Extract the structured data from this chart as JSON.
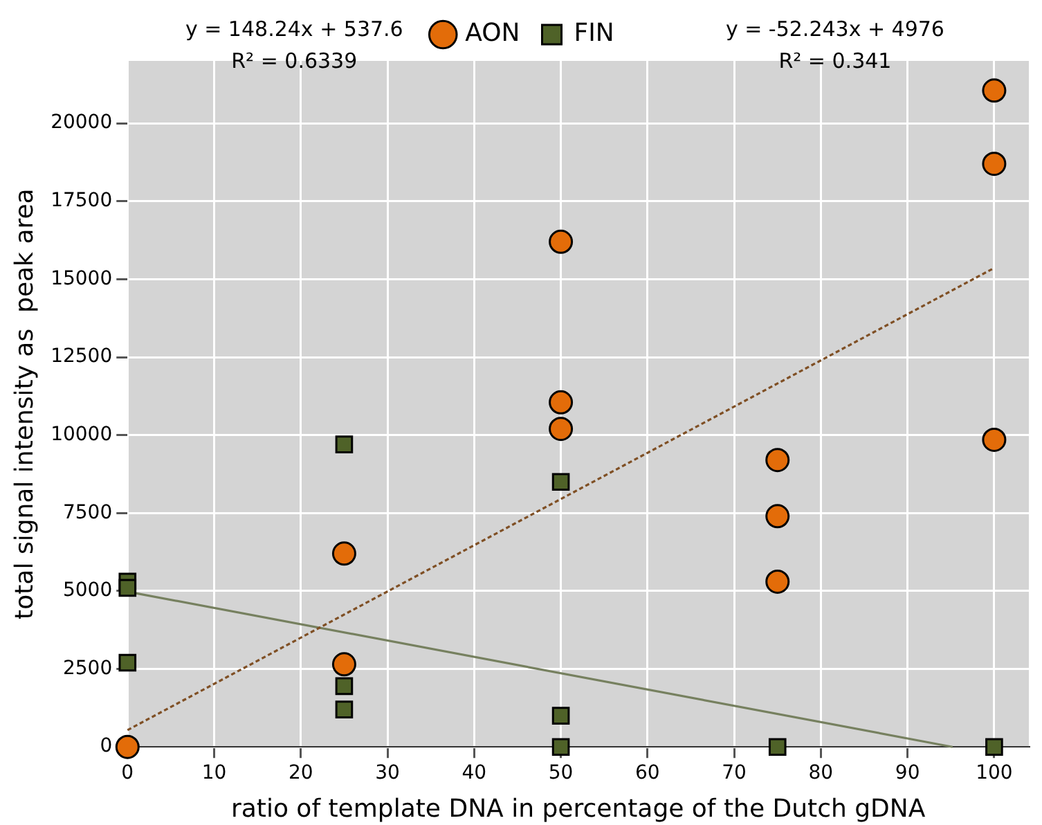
{
  "chart_data": {
    "type": "scatter",
    "xlabel": "ratio of template DNA in percentage of the Dutch gDNA",
    "ylabel": "total signal intensity as  peak area",
    "annotations": [
      "y = 148.24x + 537.6",
      "R² = 0.6339",
      "y = -52.243x + 4976",
      "R² = 0.341"
    ],
    "xlim": [
      0,
      104
    ],
    "xticks": [
      0,
      10,
      20,
      30,
      40,
      50,
      60,
      70,
      80,
      90,
      100
    ],
    "ylim": [
      0,
      22000
    ],
    "yticks": [
      0,
      2500,
      5000,
      7500,
      10000,
      12500,
      15000,
      17500,
      20000
    ],
    "grid": true,
    "legend": "top",
    "series": [
      {
        "name": "AON",
        "color": "#e36c09",
        "marker": "circle",
        "x": [
          0,
          25,
          25,
          50,
          50,
          50,
          75,
          75,
          75,
          100,
          100,
          100
        ],
        "values": [
          0,
          6200,
          2650,
          16200,
          11050,
          10200,
          9200,
          7400,
          5300,
          21050,
          18700,
          9850
        ]
      },
      {
        "name": "FIN",
        "color": "#4f6228",
        "marker": "square",
        "x": [
          0,
          0,
          0,
          25,
          25,
          25,
          50,
          50,
          50,
          75,
          100
        ],
        "values": [
          5300,
          5100,
          2700,
          9700,
          1950,
          1200,
          8500,
          1000,
          0,
          0,
          0
        ]
      },
      {
        "type": "line",
        "color": "#7f4f24",
        "line_style": "dotted",
        "x": [
          0,
          100
        ],
        "values": [
          540,
          15360
        ]
      },
      {
        "type": "line",
        "color": "#76805f",
        "line_style": "solid",
        "x": [
          0,
          95.2
        ],
        "values": [
          4980,
          0
        ]
      }
    ]
  }
}
